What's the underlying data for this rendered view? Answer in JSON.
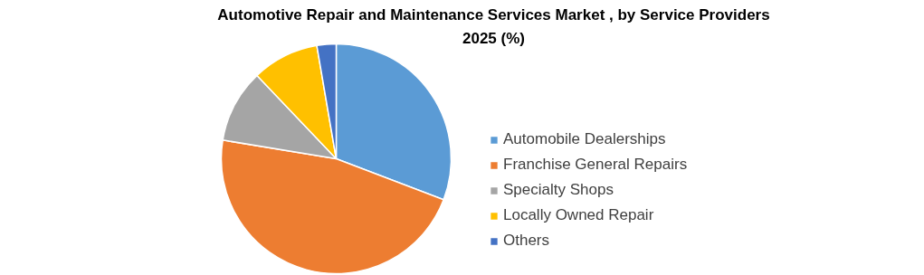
{
  "chart_data": {
    "type": "pie",
    "title": "Automotive Repair and Maintenance Services Market , by Service Providers 2025 (%)",
    "categories": [
      "Automobile Dealerships",
      "Franchise General Repairs",
      "Specialty Shops",
      "Locally Owned Repair",
      "Others"
    ],
    "values": [
      30.8,
      46.8,
      10.3,
      9.4,
      2.7
    ],
    "colors": [
      "#5b9bd5",
      "#ed7d31",
      "#a5a5a5",
      "#ffc000",
      "#4472c4"
    ],
    "legend": "right"
  }
}
